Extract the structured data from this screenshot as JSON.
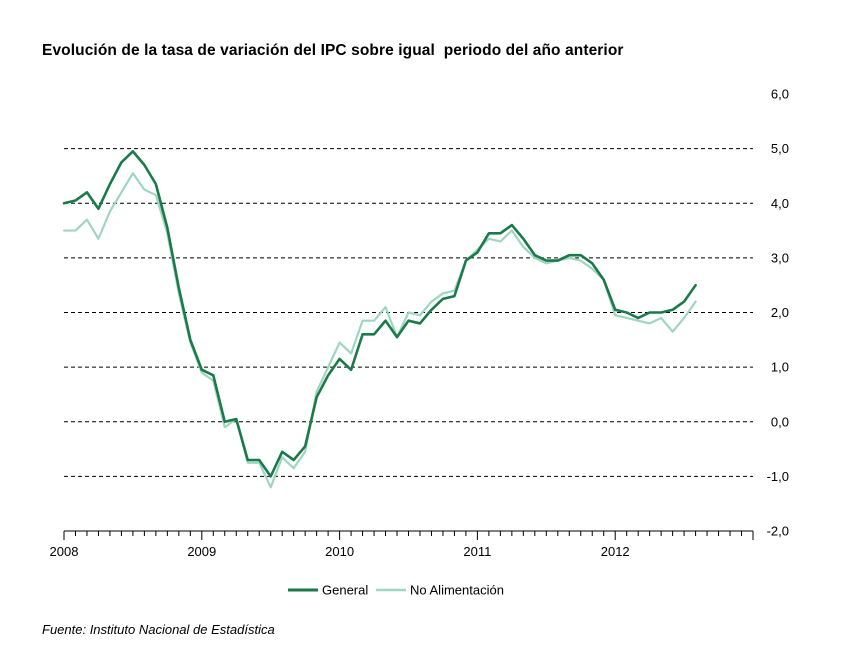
{
  "chart_data": {
    "type": "line",
    "title": "Evolución de la tasa de variación del IPC sobre igual  periodo del año anterior",
    "source": "Fuente: Instituto Nacional de Estadística",
    "xlabel": "",
    "ylabel": "",
    "x_ticks": [
      "2008",
      "2009",
      "2010",
      "2011",
      "2012"
    ],
    "x_range": [
      "2008-01",
      "2012-12"
    ],
    "ylim": [
      -2.0,
      6.0
    ],
    "y_ticks": [
      "6,0",
      "5,0",
      "4,0",
      "3,0",
      "2,0",
      "1,0",
      "0,0",
      "-1,0",
      "-2,0"
    ],
    "y_tick_values": [
      6,
      5,
      4,
      3,
      2,
      1,
      0,
      -1,
      -2
    ],
    "grid": "horizontal dashed",
    "legend_position": "bottom-center",
    "x": [
      "2008-01",
      "2008-02",
      "2008-03",
      "2008-04",
      "2008-05",
      "2008-06",
      "2008-07",
      "2008-08",
      "2008-09",
      "2008-10",
      "2008-11",
      "2008-12",
      "2009-01",
      "2009-02",
      "2009-03",
      "2009-04",
      "2009-05",
      "2009-06",
      "2009-07",
      "2009-08",
      "2009-09",
      "2009-10",
      "2009-11",
      "2009-12",
      "2010-01",
      "2010-02",
      "2010-03",
      "2010-04",
      "2010-05",
      "2010-06",
      "2010-07",
      "2010-08",
      "2010-09",
      "2010-10",
      "2010-11",
      "2010-12",
      "2011-01",
      "2011-02",
      "2011-03",
      "2011-04",
      "2011-05",
      "2011-06",
      "2011-07",
      "2011-08",
      "2011-09",
      "2011-10",
      "2011-11",
      "2011-12",
      "2012-01",
      "2012-02",
      "2012-03",
      "2012-04",
      "2012-05",
      "2012-06",
      "2012-07",
      "2012-08"
    ],
    "series": [
      {
        "name": "General",
        "color": "#1b7a4a",
        "values": [
          4.0,
          4.05,
          4.2,
          3.9,
          4.35,
          4.75,
          4.95,
          4.7,
          4.35,
          3.55,
          2.45,
          1.5,
          0.95,
          0.85,
          0.0,
          0.05,
          -0.7,
          -0.7,
          -1.0,
          -0.55,
          -0.7,
          -0.45,
          0.45,
          0.85,
          1.15,
          0.95,
          1.6,
          1.6,
          1.85,
          1.55,
          1.85,
          1.8,
          2.05,
          2.25,
          2.3,
          2.95,
          3.1,
          3.45,
          3.45,
          3.6,
          3.35,
          3.05,
          2.95,
          2.95,
          3.05,
          3.05,
          2.9,
          2.6,
          2.05,
          2.0,
          1.9,
          2.0,
          2.0,
          2.05,
          2.2,
          2.5
        ]
      },
      {
        "name": "No Alimentación",
        "color": "#9fd6c0",
        "values": [
          3.5,
          3.5,
          3.7,
          3.35,
          3.85,
          4.2,
          4.55,
          4.25,
          4.15,
          3.45,
          2.35,
          1.45,
          0.9,
          0.75,
          -0.1,
          0.05,
          -0.75,
          -0.75,
          -1.2,
          -0.65,
          -0.85,
          -0.55,
          0.55,
          1.0,
          1.45,
          1.25,
          1.85,
          1.85,
          2.1,
          1.55,
          2.0,
          1.95,
          2.2,
          2.35,
          2.4,
          2.95,
          3.15,
          3.35,
          3.3,
          3.5,
          3.2,
          3.0,
          2.9,
          2.95,
          3.0,
          2.95,
          2.8,
          2.6,
          1.95,
          1.9,
          1.85,
          1.8,
          1.9,
          1.65,
          1.9,
          2.2
        ]
      }
    ]
  }
}
